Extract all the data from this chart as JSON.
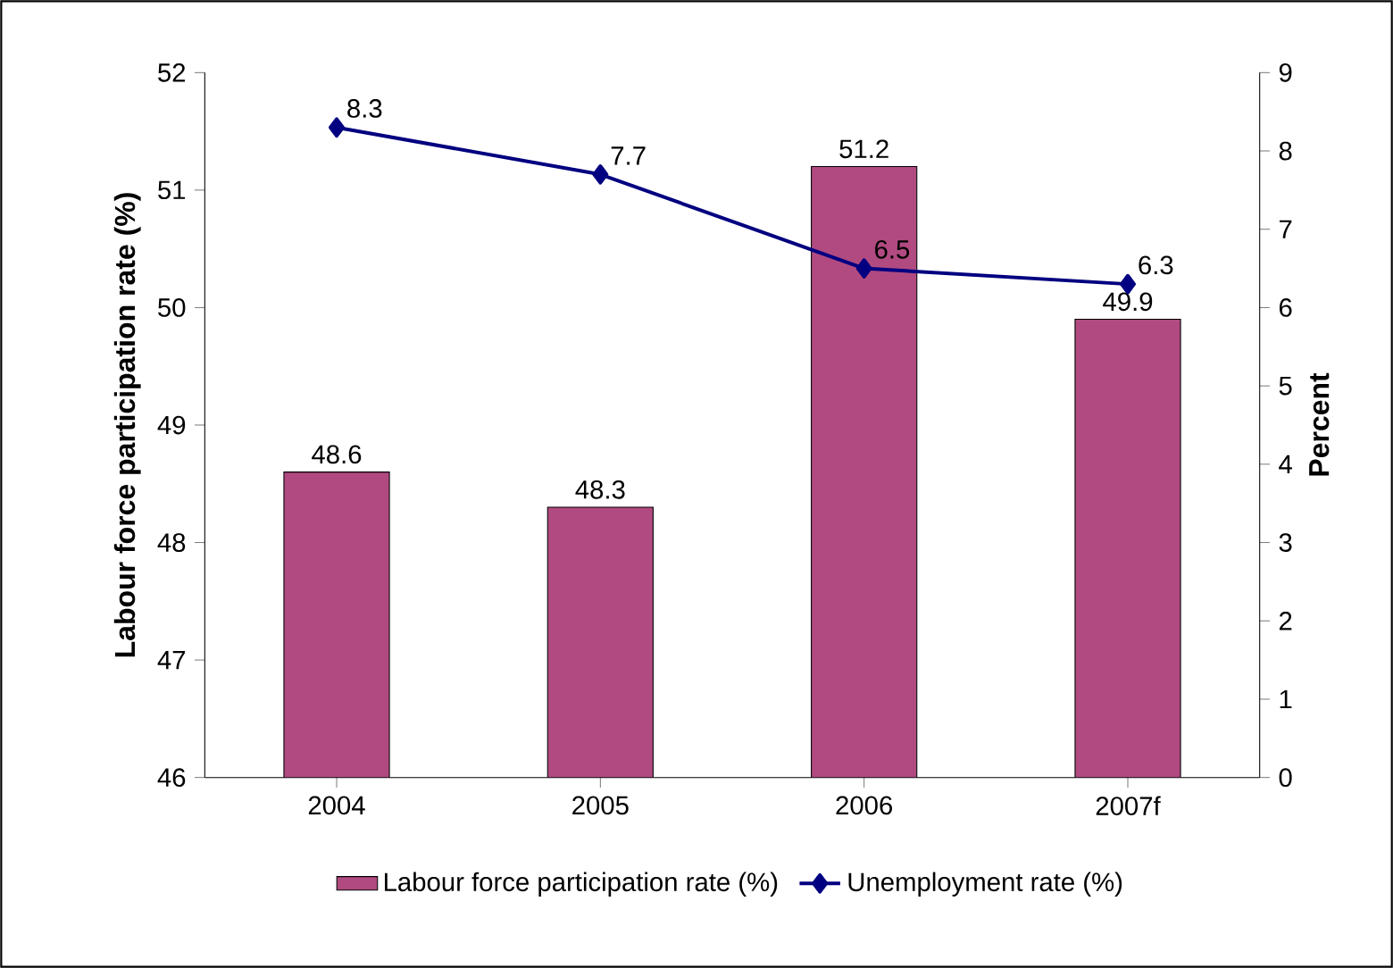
{
  "chart_data": {
    "type": "bar",
    "categories": [
      "2004",
      "2005",
      "2006",
      "2007f"
    ],
    "series": [
      {
        "name": "Labour force participation rate (%)",
        "color": "#b04a80",
        "values": [
          48.6,
          48.3,
          51.2,
          49.9
        ]
      },
      {
        "name": "Unemployment rate (%)",
        "type": "line",
        "axis": "y2",
        "color": "#000080",
        "values": [
          8.3,
          7.7,
          6.5,
          6.3
        ]
      }
    ],
    "ylabel": "Labour force participation rate (%)",
    "y2label": "Percent",
    "ylim": [
      46,
      52
    ],
    "yticks": [
      46,
      47,
      48,
      49,
      50,
      51,
      52
    ],
    "y2lim": [
      0,
      9
    ],
    "y2ticks": [
      0,
      1,
      2,
      3,
      4,
      5,
      6,
      7,
      8,
      9
    ],
    "data_labels": true,
    "legend": "bottom",
    "marker": "diamond",
    "line_style": "solid",
    "grid": false
  }
}
